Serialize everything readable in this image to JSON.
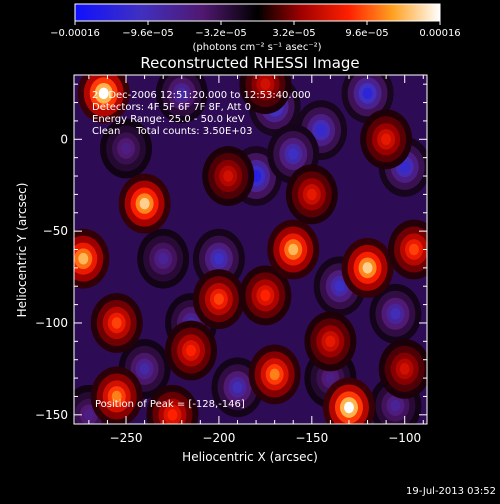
{
  "chart_data": {
    "type": "heatmap",
    "title": "Reconstructed RHESSI Image",
    "xlabel": "Heliocentric X (arcsec)",
    "ylabel": "Heliocentric Y (arcsec)",
    "xlim": [
      -278,
      -88
    ],
    "ylim": [
      -155,
      35
    ],
    "x_ticks": [
      -250,
      -200,
      -150,
      -100
    ],
    "y_ticks": [
      0,
      -50,
      -100,
      -150
    ],
    "colorbar": {
      "range": [
        -0.00016,
        0.00016
      ],
      "tick_values": [
        -0.00016,
        -9.6e-05,
        -3.2e-05,
        3.2e-05,
        9.6e-05,
        0.00016
      ],
      "tick_labels": [
        "−0.00016",
        "−9.6e−05",
        "−3.2e−05",
        "3.2e−05",
        "9.6e−05",
        "0.00016"
      ],
      "units": "(photons cm⁻² s⁻¹ asec⁻²)"
    },
    "annotations": {
      "time": "20-Dec-2006 12:51:20.000 to 12:53:40.000",
      "detectors": "Detectors: 4F 5F 6F 7F 8F, Att 0",
      "energy": "Energy Range: 25.0 - 50.0 keV",
      "clean": "Clean     Total counts: 3.50E+03",
      "peak": "Position of Peak = [-128,-146]"
    },
    "timestamp": "19-Jul-2013 03:52",
    "hot_spots": [
      {
        "x": -262,
        "y": 25,
        "intensity": 0.00016
      },
      {
        "x": -240,
        "y": -35,
        "intensity": 0.00014
      },
      {
        "x": -273,
        "y": -65,
        "intensity": 0.00013
      },
      {
        "x": -255,
        "y": -100,
        "intensity": 9e-05
      },
      {
        "x": -215,
        "y": -115,
        "intensity": 8e-05
      },
      {
        "x": -200,
        "y": -87,
        "intensity": 9e-05
      },
      {
        "x": -175,
        "y": -85,
        "intensity": 8e-05
      },
      {
        "x": -160,
        "y": -60,
        "intensity": 0.00013
      },
      {
        "x": -120,
        "y": -70,
        "intensity": 0.00014
      },
      {
        "x": -95,
        "y": -60,
        "intensity": 9e-05
      },
      {
        "x": -130,
        "y": -146,
        "intensity": 0.00016
      },
      {
        "x": -170,
        "y": -128,
        "intensity": 0.00011
      },
      {
        "x": -225,
        "y": -150,
        "intensity": 8e-05
      },
      {
        "x": -150,
        "y": -30,
        "intensity": 7e-05
      },
      {
        "x": -110,
        "y": 0,
        "intensity": 7e-05
      },
      {
        "x": -255,
        "y": -140,
        "intensity": 0.00011
      },
      {
        "x": -195,
        "y": -20,
        "intensity": 6e-05
      },
      {
        "x": -175,
        "y": 30,
        "intensity": 6e-05
      },
      {
        "x": -140,
        "y": -110,
        "intensity": 7e-05
      },
      {
        "x": -100,
        "y": -125,
        "intensity": 6e-05
      }
    ],
    "cold_spots": [
      {
        "x": -170,
        "y": 18,
        "intensity": -0.00012
      },
      {
        "x": -145,
        "y": 5,
        "intensity": -0.00011
      },
      {
        "x": -120,
        "y": 25,
        "intensity": -0.00012
      },
      {
        "x": -180,
        "y": -20,
        "intensity": -0.00013
      },
      {
        "x": -160,
        "y": -8,
        "intensity": -0.0001
      },
      {
        "x": -100,
        "y": -15,
        "intensity": -0.00011
      },
      {
        "x": -220,
        "y": 25,
        "intensity": -8e-05
      },
      {
        "x": -200,
        "y": -65,
        "intensity": -0.0001
      },
      {
        "x": -230,
        "y": -65,
        "intensity": -7e-05
      },
      {
        "x": -215,
        "y": -100,
        "intensity": -8e-05
      },
      {
        "x": -240,
        "y": -125,
        "intensity": -8e-05
      },
      {
        "x": -135,
        "y": -80,
        "intensity": -0.0001
      },
      {
        "x": -105,
        "y": -95,
        "intensity": -9e-05
      },
      {
        "x": -190,
        "y": -135,
        "intensity": -9e-05
      },
      {
        "x": -105,
        "y": -145,
        "intensity": -7e-05
      },
      {
        "x": -270,
        "y": -150,
        "intensity": -6e-05
      },
      {
        "x": -250,
        "y": -5,
        "intensity": -6e-05
      },
      {
        "x": -140,
        "y": -130,
        "intensity": -6e-05
      }
    ]
  }
}
